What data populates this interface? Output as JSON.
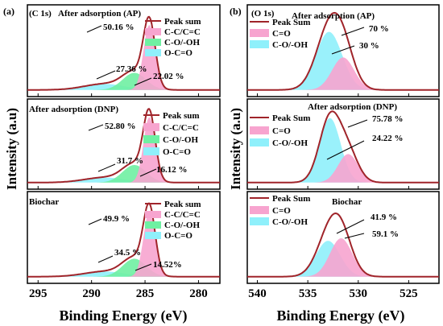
{
  "chart_data": [
    {
      "panel_label": "(a)",
      "ylabel": "Intensity (a.u)",
      "xlabel": "Binding Energy (eV)",
      "xlim": [
        278,
        296
      ],
      "xticks": [
        280,
        285,
        290,
        295
      ],
      "type": "area",
      "colors": {
        "sum": "#a0242a",
        "cc": "#f7a4cf",
        "co": "#6ff0a2",
        "oco": "#8ff0fb"
      },
      "subplots": [
        {
          "tag": "(C 1s)",
          "title": "After adsorption (AP)",
          "legend": [
            "Peak sum",
            "C-C/C=C",
            "C-O/-OH",
            "O-C=O"
          ],
          "annotations": [
            "50.16 %",
            "27.36 %",
            "22.02 %"
          ],
          "peaks": [
            {
              "series": "C-C/C=C",
              "center": 284.6,
              "sigma": 0.55,
              "height": 0.76
            },
            {
              "series": "C-O/-OH",
              "center": 286.0,
              "sigma": 1.1,
              "height": 0.2
            },
            {
              "series": "O-C=O",
              "center": 288.8,
              "sigma": 1.9,
              "height": 0.07
            }
          ]
        },
        {
          "tag": "",
          "title": "After adsorption (DNP)",
          "legend": [
            "Peak sum",
            "C-C/C=C",
            "C-O/-OH",
            "O-C=O"
          ],
          "annotations": [
            "52.80 %",
            "31.7 %",
            "16.12 %"
          ],
          "peaks": [
            {
              "series": "C-C/C=C",
              "center": 284.6,
              "sigma": 0.55,
              "height": 0.78
            },
            {
              "series": "C-O/-OH",
              "center": 286.0,
              "sigma": 1.1,
              "height": 0.21
            },
            {
              "series": "O-C=O",
              "center": 288.8,
              "sigma": 1.9,
              "height": 0.06
            }
          ]
        },
        {
          "tag": "",
          "title": "Biochar",
          "legend": [
            "Peak sum",
            "C-C/C=C",
            "C-O/-OH",
            "O-C=O"
          ],
          "annotations": [
            "49.9 %",
            "34.5 %",
            "14.52%"
          ],
          "peaks": [
            {
              "series": "C-C/C=C",
              "center": 284.6,
              "sigma": 0.55,
              "height": 0.76
            },
            {
              "series": "C-O/-OH",
              "center": 286.0,
              "sigma": 1.1,
              "height": 0.21
            },
            {
              "series": "O-C=O",
              "center": 288.8,
              "sigma": 1.9,
              "height": 0.06
            }
          ]
        }
      ]
    },
    {
      "panel_label": "(b)",
      "ylabel": "Intensity (a.u)",
      "xlabel": "Binding Energy (eV)",
      "xlim": [
        522,
        541
      ],
      "xticks": [
        525,
        530,
        535,
        540
      ],
      "type": "area",
      "colors": {
        "sum": "#a0242a",
        "c1": "#f7a4cf",
        "c2": "#8ff0fb"
      },
      "subplots": [
        {
          "tag": "(O 1s)",
          "title": "After adsorption (AP)",
          "legend": [
            "Peak Sum",
            "C=O",
            "C-O/-OH"
          ],
          "annotations": [
            "70 %",
            "30 %"
          ],
          "peaks": [
            {
              "series": "C=O",
              "center": 531.5,
              "sigma": 1.1,
              "height": 0.38
            },
            {
              "series": "C-O/-OH",
              "center": 532.9,
              "sigma": 1.3,
              "height": 0.68
            }
          ]
        },
        {
          "tag": "",
          "title": "After adsorption (DNP)",
          "legend": [
            "Peak Sum",
            "C=O",
            "C-O/-OH"
          ],
          "annotations": [
            "75.78 %",
            "24.22 %"
          ],
          "peaks": [
            {
              "series": "C=O",
              "center": 531.0,
              "sigma": 1.0,
              "height": 0.34
            },
            {
              "series": "C-O/-OH",
              "center": 532.8,
              "sigma": 1.05,
              "height": 0.77
            }
          ]
        },
        {
          "tag": "",
          "title": "Biochar",
          "legend": [
            "Peak Sum",
            "C=O",
            "C-O/-OH"
          ],
          "annotations": [
            "41.9 %",
            "59.1 %"
          ],
          "peaks": [
            {
              "series": "C=O",
              "center": 531.7,
              "sigma": 1.1,
              "height": 0.45
            },
            {
              "series": "C-O/-OH",
              "center": 533.0,
              "sigma": 1.2,
              "height": 0.42
            }
          ]
        }
      ]
    }
  ]
}
